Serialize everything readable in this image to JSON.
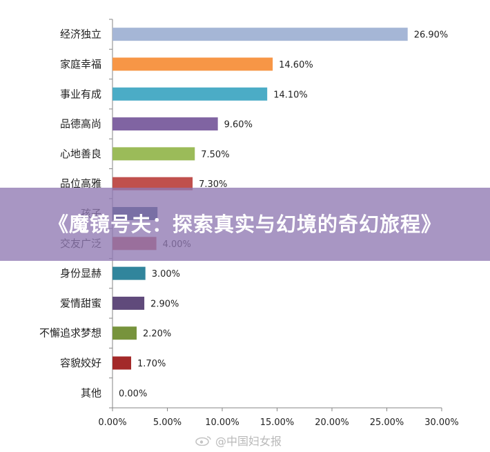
{
  "chart_data": {
    "type": "bar",
    "orientation": "horizontal",
    "categories": [
      "经济独立",
      "家庭幸福",
      "事业有成",
      "品德高尚",
      "心地善良",
      "品位高雅",
      "孩子",
      "交友广泛",
      "身份显赫",
      "爱情甜蜜",
      "不懈追求梦想",
      "容貌姣好",
      "其他"
    ],
    "values": [
      26.9,
      14.6,
      14.1,
      9.6,
      7.5,
      7.3,
      4.1,
      4.0,
      3.0,
      2.9,
      2.2,
      1.7,
      0.0
    ],
    "value_labels": [
      "26.90%",
      "14.60%",
      "14.10%",
      "9.60%",
      "7.50%",
      "7.30%",
      "",
      "4.00%",
      "3.00%",
      "2.90%",
      "2.20%",
      "1.70%",
      "0.00%"
    ],
    "colors": [
      "#a5b6d6",
      "#f79646",
      "#4bacc6",
      "#8064a2",
      "#9bbb59",
      "#c0504d",
      "#2c4d75",
      "#c0504d",
      "#31859c",
      "#604a7b",
      "#77933c",
      "#a32929",
      "#1f497d"
    ],
    "xlim": [
      0,
      30
    ],
    "x_ticks": [
      "0.00%",
      "5.00%",
      "10.00%",
      "15.00%",
      "20.00%",
      "25.00%",
      "30.00%"
    ],
    "grid": false,
    "title": "",
    "xlabel": "",
    "ylabel": ""
  },
  "banner": {
    "title": "《魔镜号夫：探索真实与幻境的奇幻旅程》",
    "color": "#8f78b2"
  },
  "watermark": {
    "icon": "weibo-icon",
    "text": "@中国妇女报"
  }
}
